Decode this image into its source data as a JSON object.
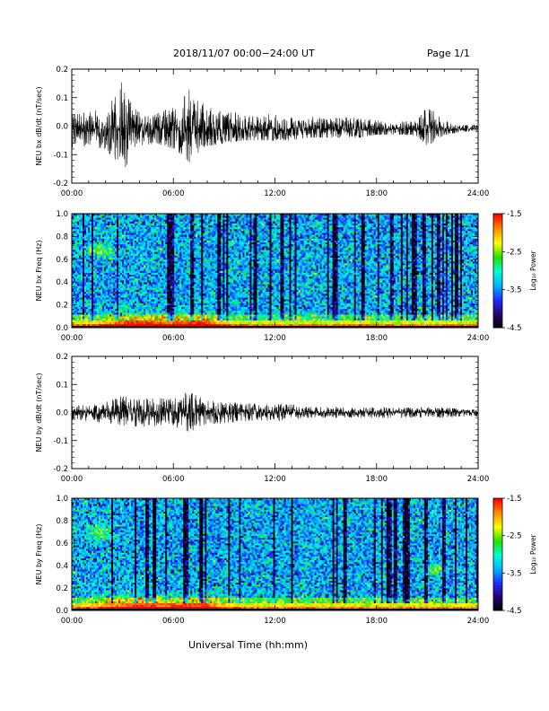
{
  "header": {
    "title": "2018/11/07  00:00−24:00 UT",
    "page": "Page 1/1"
  },
  "xaxis": {
    "label": "Universal Time (hh:mm)",
    "range": [
      0,
      24
    ],
    "tick_labels": [
      "00:00",
      "06:00",
      "12:00",
      "18:00",
      "24:00"
    ]
  },
  "colors": {
    "trace": "#000000",
    "colormap": [
      "#000000",
      "#2a0070",
      "#1f2cff",
      "#00b4ff",
      "#00ffd0",
      "#22e000",
      "#ffff00",
      "#ff8c00",
      "#ff0000"
    ]
  },
  "chart_data": [
    {
      "type": "line",
      "id": "bx-dbdt",
      "ylabel": "NEU bx dB/dt (nT/sec)",
      "ylim": [
        -0.2,
        0.2
      ],
      "yticks": [
        "-0.2",
        "-0.1",
        "0.0",
        "0.1",
        "0.2"
      ],
      "baseline": -0.01,
      "x": [
        0,
        1,
        2,
        2.5,
        3,
        3.5,
        4,
        5,
        6,
        6.5,
        7,
        7.5,
        8,
        9,
        10,
        11,
        12,
        13,
        14,
        15,
        16,
        17,
        18,
        19,
        20,
        20.5,
        21,
        22,
        23,
        24
      ],
      "max_envelope": [
        0.04,
        0.05,
        0.07,
        0.1,
        0.17,
        0.08,
        0.06,
        0.06,
        0.08,
        0.1,
        0.17,
        0.11,
        0.09,
        0.07,
        0.06,
        0.05,
        0.06,
        0.05,
        0.05,
        0.04,
        0.04,
        0.05,
        0.03,
        0.02,
        0.03,
        0.04,
        0.1,
        0.03,
        0.01,
        0.01
      ],
      "min_envelope": [
        -0.11,
        -0.07,
        -0.08,
        -0.12,
        -0.18,
        -0.1,
        -0.07,
        -0.06,
        -0.08,
        -0.1,
        -0.13,
        -0.09,
        -0.07,
        -0.06,
        -0.05,
        -0.05,
        -0.05,
        -0.05,
        -0.04,
        -0.04,
        -0.04,
        -0.04,
        -0.03,
        -0.03,
        -0.03,
        -0.04,
        -0.07,
        -0.03,
        -0.02,
        -0.02
      ]
    },
    {
      "type": "heatmap",
      "id": "bx-spec",
      "ylabel": "NEU bx Freq (Hz)",
      "ylim": [
        0,
        1
      ],
      "yticks": [
        "0.0",
        "0.2",
        "0.4",
        "0.6",
        "0.8",
        "1.0"
      ],
      "colorbar": {
        "label": "Log₁₀ Power",
        "range": [
          -4.5,
          -1.5
        ],
        "ticks": [
          "-1.5",
          "-2.5",
          "-3.5",
          "-4.5"
        ]
      }
    },
    {
      "type": "line",
      "id": "by-dbdt",
      "ylabel": "NEU by dB/dt (nT/sec)",
      "ylim": [
        -0.2,
        0.2
      ],
      "yticks": [
        "-0.2",
        "-0.1",
        "0.0",
        "0.1",
        "0.2"
      ],
      "baseline": 0.0,
      "x": [
        0,
        1,
        2,
        2.5,
        3,
        3.5,
        4,
        5,
        6,
        6.5,
        7,
        7.5,
        8,
        9,
        10,
        11,
        12,
        13,
        14,
        15,
        16,
        17,
        18,
        19,
        20,
        20.5,
        21,
        22,
        23,
        24
      ],
      "max_envelope": [
        0.02,
        0.03,
        0.04,
        0.05,
        0.06,
        0.05,
        0.06,
        0.05,
        0.06,
        0.07,
        0.1,
        0.07,
        0.05,
        0.04,
        0.04,
        0.03,
        0.03,
        0.03,
        0.02,
        0.02,
        0.02,
        0.02,
        0.02,
        0.02,
        0.02,
        0.02,
        0.02,
        0.02,
        0.01,
        0.01
      ],
      "min_envelope": [
        -0.05,
        -0.03,
        -0.04,
        -0.05,
        -0.07,
        -0.05,
        -0.05,
        -0.05,
        -0.05,
        -0.06,
        -0.07,
        -0.05,
        -0.04,
        -0.04,
        -0.03,
        -0.03,
        -0.03,
        -0.03,
        -0.02,
        -0.02,
        -0.02,
        -0.02,
        -0.02,
        -0.02,
        -0.02,
        -0.02,
        -0.02,
        -0.02,
        -0.02,
        -0.02
      ]
    },
    {
      "type": "heatmap",
      "id": "by-spec",
      "ylabel": "NEU by Freq (Hz)",
      "ylim": [
        0,
        1
      ],
      "yticks": [
        "0.0",
        "0.2",
        "0.4",
        "0.6",
        "0.8",
        "1.0"
      ],
      "colorbar": {
        "label": "Log₁₀ Power",
        "range": [
          -4.5,
          -1.5
        ],
        "ticks": [
          "-1.5",
          "-2.5",
          "-3.5",
          "-4.5"
        ]
      }
    }
  ]
}
